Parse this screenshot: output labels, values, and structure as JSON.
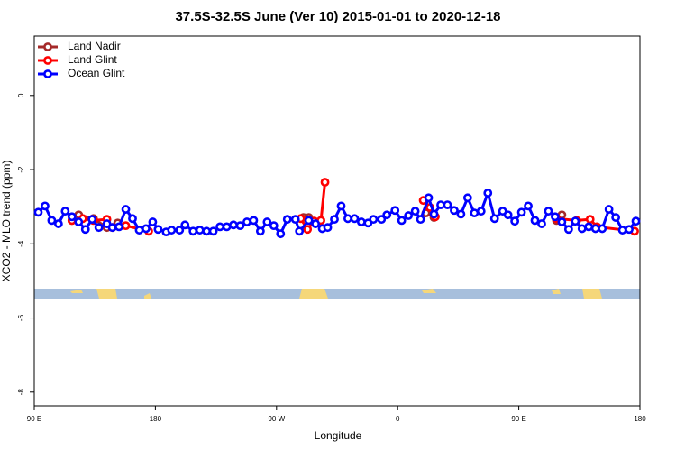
{
  "chart_data": {
    "type": "line",
    "title": "37.5S-32.5S June (Ver 10)   2015-01-01 to 2020-12-18",
    "x_label": "Longitude",
    "y_label": "XCO2 - MLO trend (ppm)",
    "xlim": [
      90,
      540
    ],
    "ylim": [
      -8.37,
      1.6
    ],
    "xticks": [
      {
        "value": 90,
        "label": "90 E"
      },
      {
        "value": 180,
        "label": "180"
      },
      {
        "value": 270,
        "label": "90 W"
      },
      {
        "value": 360,
        "label": "0"
      },
      {
        "value": 450,
        "label": "90 E"
      },
      {
        "value": 540,
        "label": "180"
      }
    ],
    "yticks": [
      0,
      -2,
      -4,
      -6,
      -8
    ],
    "legend": "top-left",
    "series": [
      {
        "name": "Land Nadir",
        "color": "#a52a2a",
        "x": [
          118,
          123,
          134,
          144,
          152,
          null,
          290,
          294,
          null,
          381,
          387,
          null,
          478,
          482
        ],
        "values": [
          -3.37,
          -3.22,
          -3.32,
          -3.56,
          -3.44,
          null,
          -3.29,
          -3.29,
          null,
          -3.17,
          -3.29,
          null,
          -3.37,
          -3.22
        ]
      },
      {
        "name": "Land Glint",
        "color": "#ff0000",
        "x": [
          118,
          126,
          134,
          144,
          148,
          158,
          175,
          null,
          288,
          293,
          298,
          303,
          306,
          null,
          379,
          384,
          388,
          null,
          478,
          493,
          503,
          508,
          536
        ],
        "values": [
          -3.37,
          -3.32,
          -3.37,
          -3.34,
          -3.56,
          -3.51,
          -3.66,
          null,
          -3.32,
          -3.61,
          -3.39,
          -3.37,
          -2.34,
          null,
          -2.83,
          -3.02,
          -3.27,
          null,
          -3.32,
          -3.37,
          -3.34,
          -3.54,
          -3.66
        ]
      },
      {
        "name": "Ocean Glint",
        "color": "#0000ff",
        "x": [
          93,
          98,
          103,
          108,
          113,
          118,
          123,
          128,
          133,
          138,
          144,
          148,
          153,
          158,
          163,
          168,
          173,
          178,
          182,
          188,
          192,
          198,
          202,
          208,
          213,
          218,
          223,
          228,
          233,
          238,
          243,
          248,
          253,
          258,
          263,
          268,
          273,
          278,
          284,
          287,
          294,
          299,
          304,
          308,
          313,
          318,
          323,
          328,
          333,
          338,
          342,
          348,
          352,
          358,
          363,
          368,
          373,
          377,
          383,
          387,
          392,
          397,
          402,
          407,
          412,
          417,
          422,
          427,
          432,
          438,
          442,
          447,
          452,
          457,
          462,
          467,
          472,
          477,
          482,
          487,
          492,
          497,
          502,
          507,
          512,
          517,
          522,
          527,
          532,
          537
        ],
        "values": [
          -3.15,
          -2.98,
          -3.37,
          -3.46,
          -3.12,
          -3.27,
          -3.41,
          -3.61,
          -3.34,
          -3.56,
          -3.46,
          -3.56,
          -3.54,
          -3.07,
          -3.32,
          -3.63,
          -3.59,
          -3.41,
          -3.61,
          -3.68,
          -3.63,
          -3.63,
          -3.49,
          -3.66,
          -3.63,
          -3.66,
          -3.66,
          -3.54,
          -3.54,
          -3.49,
          -3.51,
          -3.41,
          -3.37,
          -3.66,
          -3.41,
          -3.51,
          -3.73,
          -3.34,
          -3.34,
          -3.66,
          -3.37,
          -3.46,
          -3.59,
          -3.56,
          -3.34,
          -2.98,
          -3.32,
          -3.32,
          -3.41,
          -3.44,
          -3.34,
          -3.34,
          -3.22,
          -3.1,
          -3.37,
          -3.24,
          -3.12,
          -3.34,
          -2.76,
          -3.2,
          -2.95,
          -2.95,
          -3.1,
          -3.2,
          -2.76,
          -3.17,
          -3.12,
          -2.63,
          -3.32,
          -3.12,
          -3.22,
          -3.39,
          -3.15,
          -2.98,
          -3.37,
          -3.46,
          -3.12,
          -3.27,
          -3.41,
          -3.61,
          -3.39,
          -3.59,
          -3.54,
          -3.59,
          -3.59,
          -3.07,
          -3.29,
          -3.63,
          -3.61,
          -3.39
        ]
      }
    ]
  }
}
